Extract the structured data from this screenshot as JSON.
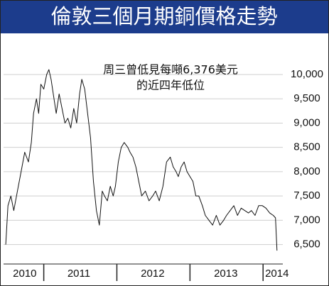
{
  "chart_data": {
    "type": "line",
    "title": "倫敦三個月期銅價格走勢",
    "annotation": [
      "周三曾低見每噸6,376美元",
      "的近四年低位"
    ],
    "x": [
      2010.48,
      2010.51,
      2010.55,
      2010.59,
      2010.64,
      2010.69,
      2010.74,
      2010.79,
      2010.83,
      2010.86,
      2010.9,
      2010.93,
      2010.96,
      2011.0,
      2011.04,
      2011.07,
      2011.1,
      2011.14,
      2011.17,
      2011.21,
      2011.25,
      2011.29,
      2011.33,
      2011.37,
      2011.41,
      2011.45,
      2011.49,
      2011.52,
      2011.56,
      2011.6,
      2011.64,
      2011.68,
      2011.72,
      2011.76,
      2011.8,
      2011.83,
      2011.87,
      2011.91,
      2011.95,
      2011.98,
      2012.02,
      2012.06,
      2012.1,
      2012.15,
      2012.18,
      2012.22,
      2012.26,
      2012.3,
      2012.34,
      2012.39,
      2012.44,
      2012.49,
      2012.53,
      2012.58,
      2012.63,
      2012.68,
      2012.73,
      2012.77,
      2012.81,
      2012.84,
      2012.88,
      2012.92,
      2012.96,
      2013.0,
      2013.04,
      2013.08,
      2013.12,
      2013.17,
      2013.21,
      2013.26,
      2013.31,
      2013.36,
      2013.41,
      2013.46,
      2013.5,
      2013.55,
      2013.6,
      2013.65,
      2013.7,
      2013.75,
      2013.8,
      2013.84,
      2013.89,
      2013.94,
      2013.99,
      2014.04,
      2014.09,
      2014.14,
      2014.17,
      2014.19
    ],
    "series": [
      {
        "color": "#111111",
        "values": [
          6500,
          7300,
          7500,
          7200,
          7600,
          8000,
          8400,
          8200,
          8600,
          9200,
          9500,
          9200,
          9800,
          9700,
          10000,
          10100,
          9900,
          9500,
          9200,
          9600,
          9300,
          9000,
          9100,
          8900,
          9300,
          9000,
          9600,
          9900,
          9700,
          9200,
          8700,
          7800,
          7200,
          6900,
          7600,
          7500,
          7400,
          7700,
          7500,
          7700,
          8200,
          8500,
          8600,
          8500,
          8400,
          8300,
          8100,
          7800,
          7500,
          7600,
          7400,
          7500,
          7600,
          7400,
          7700,
          8200,
          8300,
          8100,
          8000,
          7900,
          8100,
          8200,
          8000,
          7900,
          7800,
          7500,
          7500,
          7300,
          7100,
          7000,
          6900,
          7100,
          6900,
          7000,
          7100,
          7200,
          7300,
          7100,
          7250,
          7200,
          7150,
          7200,
          7100,
          7300,
          7300,
          7250,
          7150,
          7100,
          7050,
          6376
        ]
      }
    ],
    "xlim": [
      2010.45,
      2014.27
    ],
    "xticks": [
      {
        "value": 2010.74,
        "label": "2010"
      },
      {
        "value": 2011.48,
        "label": "2011"
      },
      {
        "value": 2012.49,
        "label": "2012"
      },
      {
        "value": 2013.49,
        "label": "2013"
      },
      {
        "value": 2014.19,
        "label": "2014"
      }
    ],
    "xseparators": [
      2011,
      2012,
      2013,
      2014
    ],
    "ylim": [
      6100,
      10730
    ],
    "yticks": [
      {
        "value": 6500,
        "label": "6,500"
      },
      {
        "value": 7000,
        "label": "7,000"
      },
      {
        "value": 7500,
        "label": "7,500"
      },
      {
        "value": 8000,
        "label": "8,000"
      },
      {
        "value": 8500,
        "label": "8,500"
      },
      {
        "value": 9000,
        "label": "9,000"
      },
      {
        "value": 9500,
        "label": "9,500"
      },
      {
        "value": 10000,
        "label": "10,000"
      }
    ],
    "grid": true
  }
}
